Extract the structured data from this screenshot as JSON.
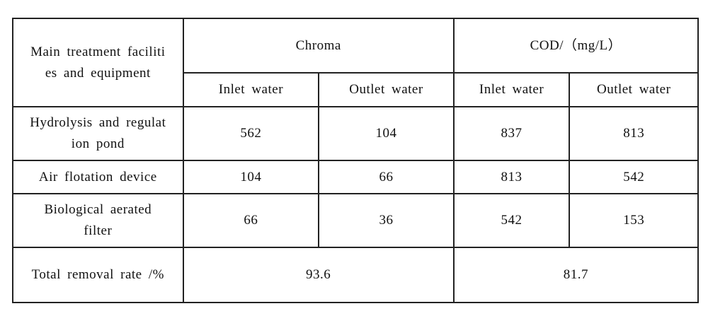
{
  "table": {
    "header": {
      "facility": "Main treatment facilities and equipment",
      "groups": [
        "Chroma",
        "COD/（mg/L）"
      ],
      "subheaders": [
        "Inlet water",
        "Outlet water",
        "Inlet water",
        "Outlet water"
      ]
    },
    "rows": [
      {
        "name": "Hydrolysis and regulation pond",
        "values": [
          562,
          104,
          837,
          813
        ]
      },
      {
        "name": "Air flotation device",
        "values": [
          104,
          66,
          813,
          542
        ]
      },
      {
        "name": "Biological aerated filter",
        "values": [
          66,
          36,
          542,
          153
        ]
      }
    ],
    "total": {
      "name": "Total removal rate /%",
      "values": [
        93.6,
        81.7
      ]
    }
  }
}
